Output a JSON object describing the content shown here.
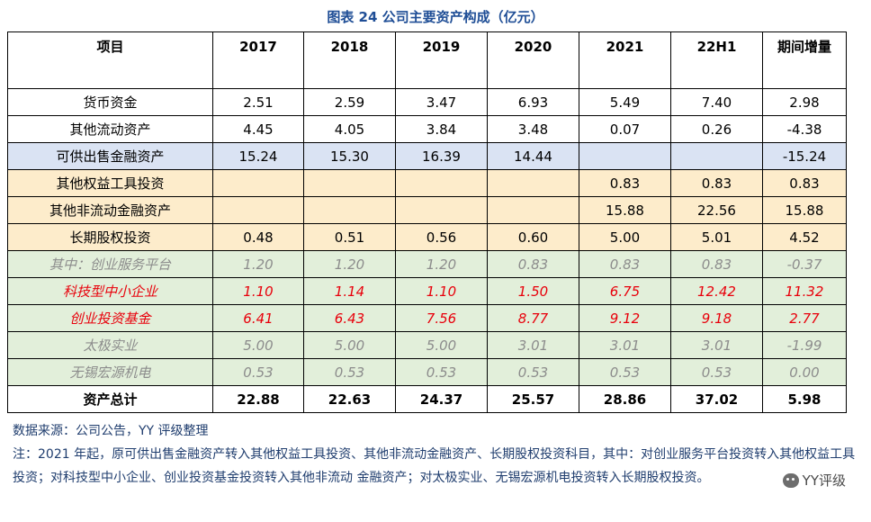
{
  "title": "图表 24 公司主要资产构成（亿元）",
  "headers": [
    "项目",
    "2017",
    "2018",
    "2019",
    "2020",
    "2021",
    "22H1",
    "期间增量"
  ],
  "rows": [
    {
      "style": "plain",
      "cells": [
        "货币资金",
        "2.51",
        "2.59",
        "3.47",
        "6.93",
        "5.49",
        "7.40",
        "2.98"
      ]
    },
    {
      "style": "plain",
      "cells": [
        "其他流动资产",
        "4.45",
        "4.05",
        "3.84",
        "3.48",
        "0.07",
        "0.26",
        "-4.38"
      ]
    },
    {
      "style": "blue",
      "cells": [
        "可供出售金融资产",
        "15.24",
        "15.30",
        "16.39",
        "14.44",
        "",
        "",
        "-15.24"
      ]
    },
    {
      "style": "peach",
      "cells": [
        "其他权益工具投资",
        "",
        "",
        "",
        "",
        "0.83",
        "0.83",
        "0.83"
      ]
    },
    {
      "style": "peach",
      "cells": [
        "其他非流动金融资产",
        "",
        "",
        "",
        "",
        "15.88",
        "22.56",
        "15.88"
      ]
    },
    {
      "style": "peach",
      "cells": [
        "长期股权投资",
        "0.48",
        "0.51",
        "0.56",
        "0.60",
        "5.00",
        "5.01",
        "4.52"
      ]
    },
    {
      "style": "green green-italic",
      "cells": [
        "其中：创业服务平台",
        "1.20",
        "1.20",
        "1.20",
        "0.83",
        "0.83",
        "0.83",
        "-0.37"
      ]
    },
    {
      "style": "green red-italic",
      "cells": [
        "科技型中小企业",
        "1.10",
        "1.14",
        "1.10",
        "1.50",
        "6.75",
        "12.42",
        "11.32"
      ]
    },
    {
      "style": "green red-italic",
      "cells": [
        "创业投资基金",
        "6.41",
        "6.43",
        "7.56",
        "8.77",
        "9.12",
        "9.18",
        "2.77"
      ]
    },
    {
      "style": "green green-italic",
      "cells": [
        "太极实业",
        "5.00",
        "5.00",
        "5.00",
        "3.01",
        "3.01",
        "3.01",
        "-1.99"
      ]
    },
    {
      "style": "green green-italic",
      "cells": [
        "无锡宏源机电",
        "0.53",
        "0.53",
        "0.53",
        "0.53",
        "0.53",
        "0.53",
        "0.00"
      ]
    },
    {
      "style": "total",
      "cells": [
        "资产总计",
        "22.88",
        "22.63",
        "24.37",
        "25.57",
        "28.86",
        "37.02",
        "5.98"
      ]
    }
  ],
  "notes": {
    "source": "数据来源：公司公告，YY 评级整理",
    "note": "注：2021 年起，原可供出售金融资产转入其他权益工具投资、其他非流动金融资产、长期股权投资科目，其中：对创业服务平台投资转入其他权益工具投资；对科技型中小企业、创业投资基金投资转入其他非流动 金融资产；对太极实业、无锡宏源机电投资转入长期股权投资。"
  },
  "watermark": {
    "label": "YY评级",
    "icon": "wechat-icon"
  },
  "colors": {
    "title": "#1f4e96",
    "blue_row": "#dae3f3",
    "peach_row": "#fdeccb",
    "green_row": "#e2efda",
    "red_text": "#e8000b",
    "gray_text": "#8c8c8c",
    "note_text": "#1f3d6e"
  }
}
